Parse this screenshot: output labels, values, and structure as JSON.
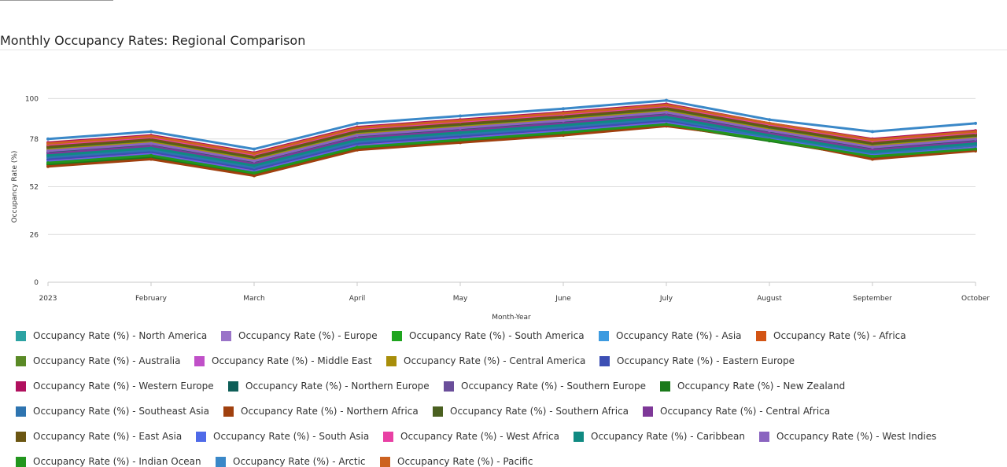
{
  "title": "Monthly Occupancy Rates: Regional Comparison",
  "chart_data": {
    "type": "line",
    "title": "Monthly Occupancy Rates: Regional Comparison",
    "xlabel": "Month-Year",
    "ylabel": "Occupancy Rate (%)",
    "ylim": [
      0,
      104
    ],
    "yticks": [
      0,
      26,
      52,
      78,
      100
    ],
    "grid": "horizontal",
    "legend_position": "bottom",
    "categories": [
      "2023",
      "February",
      "March",
      "April",
      "May",
      "June",
      "July",
      "August",
      "September",
      "October"
    ],
    "series": [
      {
        "name": "Occupancy Rate (%) - North America",
        "color": "#2ca3a3",
        "values": [
          70.5,
          74.5,
          65,
          79,
          83,
          87,
          91.5,
          81.5,
          72.5,
          77
        ]
      },
      {
        "name": "Occupancy Rate (%) - Europe",
        "color": "#9a74c8",
        "values": [
          72.5,
          76.5,
          67,
          81,
          85,
          89,
          93.5,
          83.5,
          74.5,
          79
        ]
      },
      {
        "name": "Occupancy Rate (%) - South America",
        "color": "#1fa51f",
        "values": [
          64.5,
          68.5,
          59,
          73,
          77,
          81,
          86,
          77.5,
          68.5,
          72.5
        ]
      },
      {
        "name": "Occupancy Rate (%) - Asia",
        "color": "#3d9be0",
        "values": [
          68.5,
          72.5,
          63,
          77,
          81,
          85,
          89.5,
          79.5,
          70.5,
          75
        ]
      },
      {
        "name": "Occupancy Rate (%) - Africa",
        "color": "#d35414",
        "values": [
          74.5,
          78.5,
          69,
          83,
          87,
          91,
          95.5,
          85.5,
          76.5,
          81
        ]
      },
      {
        "name": "Occupancy Rate (%) - Australia",
        "color": "#5a8a26",
        "values": [
          73,
          77,
          67.5,
          81.5,
          85.5,
          89.5,
          94,
          84,
          75,
          79.5
        ]
      },
      {
        "name": "Occupancy Rate (%) - Middle East",
        "color": "#c050c8",
        "values": [
          66.5,
          70.5,
          61,
          75,
          79,
          83,
          87.5,
          78.5,
          69.5,
          74
        ]
      },
      {
        "name": "Occupancy Rate (%) - Central America",
        "color": "#a88e0a",
        "values": [
          72,
          76,
          66.5,
          80.5,
          84.5,
          88.5,
          93,
          83,
          74,
          78.5
        ]
      },
      {
        "name": "Occupancy Rate (%) - Eastern Europe",
        "color": "#3c4fb4",
        "values": [
          67,
          71,
          61.5,
          75.5,
          79.5,
          83.5,
          88,
          79,
          70,
          74.5
        ]
      },
      {
        "name": "Occupancy Rate (%) - Western Europe",
        "color": "#b0105e",
        "values": [
          76,
          80,
          70.5,
          84.5,
          88.5,
          92.5,
          97,
          86.5,
          78,
          82.5
        ]
      },
      {
        "name": "Occupancy Rate (%) - Northern Europe",
        "color": "#0e5e58",
        "values": [
          71,
          75,
          65.5,
          79.5,
          83.5,
          87.5,
          92,
          82,
          73,
          77.5
        ]
      },
      {
        "name": "Occupancy Rate (%) - Southern Europe",
        "color": "#6a4e9a",
        "values": [
          69.5,
          73.5,
          64,
          78,
          82,
          86,
          90.5,
          80.5,
          71.5,
          76
        ]
      },
      {
        "name": "Occupancy Rate (%) - New Zealand",
        "color": "#1a7a1a",
        "values": [
          64,
          68,
          58.5,
          72.5,
          76.5,
          80.5,
          85.5,
          77,
          68,
          72
        ]
      },
      {
        "name": "Occupancy Rate (%) - Southeast Asia",
        "color": "#2e74b0",
        "values": [
          68,
          72,
          62.5,
          76.5,
          80.5,
          84.5,
          89,
          79,
          70,
          74.5
        ]
      },
      {
        "name": "Occupancy Rate (%) - Northern Africa",
        "color": "#a0400e",
        "values": [
          63,
          67,
          58,
          72,
          76,
          80,
          85,
          78,
          67,
          71.5
        ]
      },
      {
        "name": "Occupancy Rate (%) - Southern Africa",
        "color": "#4a6020",
        "values": [
          73.5,
          77.5,
          68,
          82,
          86,
          90,
          94.5,
          84.5,
          75.5,
          80
        ]
      },
      {
        "name": "Occupancy Rate (%) - Central Africa",
        "color": "#7e3898",
        "values": [
          70,
          74,
          64.5,
          78.5,
          82.5,
          86.5,
          91,
          81,
          72,
          76.5
        ]
      },
      {
        "name": "Occupancy Rate (%) - East Asia",
        "color": "#6b5612",
        "values": [
          74,
          78,
          68.5,
          82.5,
          86.5,
          90.5,
          95,
          85,
          76,
          80.5
        ]
      },
      {
        "name": "Occupancy Rate (%) - South Asia",
        "color": "#4f6ae8",
        "values": [
          65.5,
          69.5,
          60,
          74,
          78,
          82,
          86.5,
          78,
          69,
          73
        ]
      },
      {
        "name": "Occupancy Rate (%) - West Africa",
        "color": "#e840a4",
        "values": [
          75,
          79,
          69.5,
          83.5,
          87.5,
          91.5,
          96,
          86,
          77,
          81.5
        ]
      },
      {
        "name": "Occupancy Rate (%) - Caribbean",
        "color": "#108a82",
        "values": [
          69,
          73,
          63.5,
          77.5,
          81.5,
          85.5,
          90,
          80,
          71,
          75.5
        ]
      },
      {
        "name": "Occupancy Rate (%) - West Indies",
        "color": "#8a64c0",
        "values": [
          71.5,
          75.5,
          66,
          80,
          84,
          88,
          92.5,
          82.5,
          73.5,
          78
        ]
      },
      {
        "name": "Occupancy Rate (%) - Indian Ocean",
        "color": "#22961e",
        "values": [
          65,
          69,
          59.5,
          73.5,
          77.5,
          81.5,
          86,
          77.5,
          68.5,
          72.5
        ]
      },
      {
        "name": "Occupancy Rate (%) - Arctic",
        "color": "#3a88c8",
        "values": [
          78,
          82,
          72.5,
          86.5,
          90.5,
          94.5,
          99,
          88.5,
          82,
          86.5
        ]
      },
      {
        "name": "Occupancy Rate (%) - Pacific",
        "color": "#cc6220",
        "values": [
          75.5,
          79.5,
          70,
          84,
          88,
          92,
          96.5,
          86.5,
          77.5,
          82
        ]
      }
    ]
  }
}
